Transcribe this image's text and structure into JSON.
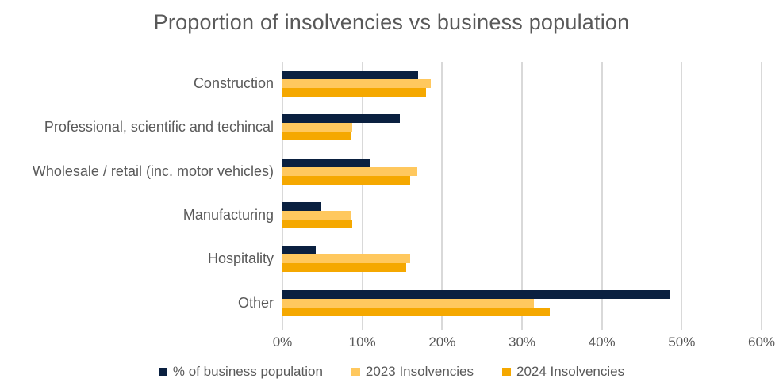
{
  "colors": {
    "text": "#595959",
    "gridline": "#d9d9d9",
    "background": "#ffffff",
    "series_navy": "#0a2040",
    "series_light_yellow": "#ffc85e",
    "series_orange": "#f5a800"
  },
  "chart_data": {
    "type": "bar",
    "orientation": "horizontal",
    "title": "Proportion of insolvencies vs business population",
    "categories": [
      "Construction",
      "Professional, scientific and techincal",
      "Wholesale / retail (inc. motor vehicles)",
      "Manufacturing",
      "Hospitality",
      "Other"
    ],
    "series": [
      {
        "name": "% of business population",
        "color": "#0a2040",
        "values": [
          17.0,
          14.7,
          10.9,
          4.9,
          4.2,
          48.5
        ]
      },
      {
        "name": "2023 Insolvencies",
        "color": "#ffc85e",
        "values": [
          18.6,
          8.7,
          16.9,
          8.5,
          16.0,
          31.5
        ]
      },
      {
        "name": "2024 Insolvencies",
        "color": "#f5a800",
        "values": [
          18.0,
          8.5,
          16.0,
          8.7,
          15.5,
          33.5
        ]
      }
    ],
    "xlabel": "",
    "ylabel": "",
    "xlim": [
      0,
      60
    ],
    "x_ticks": [
      0,
      10,
      20,
      30,
      40,
      50,
      60
    ],
    "x_tick_labels": [
      "0%",
      "10%",
      "20%",
      "30%",
      "40%",
      "50%",
      "60%"
    ],
    "grid": "vertical",
    "legend_position": "bottom"
  }
}
